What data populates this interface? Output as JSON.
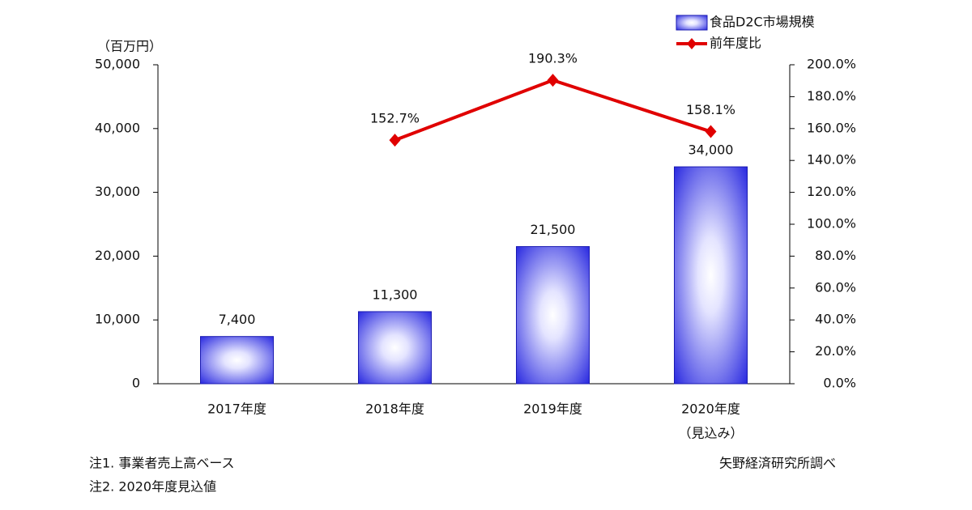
{
  "chart_data": {
    "type": "bar_line",
    "y_label": "（百万円）",
    "categories": [
      "2017年度",
      "2018年度",
      "2019年度",
      "2020年度"
    ],
    "category_notes": [
      null,
      null,
      null,
      "（見込み）"
    ],
    "series": [
      {
        "name": "食品D2C市場規模",
        "type": "bar",
        "color": "#2a2ae0",
        "values": [
          7400,
          11300,
          21500,
          34000
        ],
        "value_labels": [
          "7,400",
          "11,300",
          "21,500",
          "34,000"
        ]
      },
      {
        "name": "前年度比",
        "type": "line",
        "axis": "y2",
        "color": "#e00000",
        "values": [
          null,
          152.7,
          190.3,
          158.1
        ],
        "value_labels": [
          null,
          "152.7%",
          "190.3%",
          "158.1%"
        ]
      }
    ],
    "ylim": [
      0,
      50000
    ],
    "yticks": [
      0,
      {
        "value": 10000,
        "label": "10,000"
      },
      {
        "value": 20000,
        "label": "20,000"
      },
      {
        "value": 30000,
        "label": "30,000"
      },
      {
        "value": 40000,
        "label": "40,000"
      },
      {
        "value": 50000,
        "label": "50,000"
      }
    ],
    "y2lim": [
      0,
      200
    ],
    "y2ticks": [
      {
        "value": 0,
        "label": "0.0%"
      },
      {
        "value": 20,
        "label": "20.0%"
      },
      {
        "value": 40,
        "label": "40.0%"
      },
      {
        "value": 60,
        "label": "60.0%"
      },
      {
        "value": 80,
        "label": "80.0%"
      },
      {
        "value": 100,
        "label": "100.0%"
      },
      {
        "value": 120,
        "label": "120.0%"
      },
      {
        "value": 140,
        "label": "140.0%"
      },
      {
        "value": 160,
        "label": "160.0%"
      },
      {
        "value": 180,
        "label": "180.0%"
      },
      {
        "value": 200,
        "label": "200.0%"
      }
    ],
    "notes": [
      "注1. 事業者売上高ベース",
      "注2. 2020年度見込値"
    ],
    "source": "矢野経済研究所調べ"
  }
}
